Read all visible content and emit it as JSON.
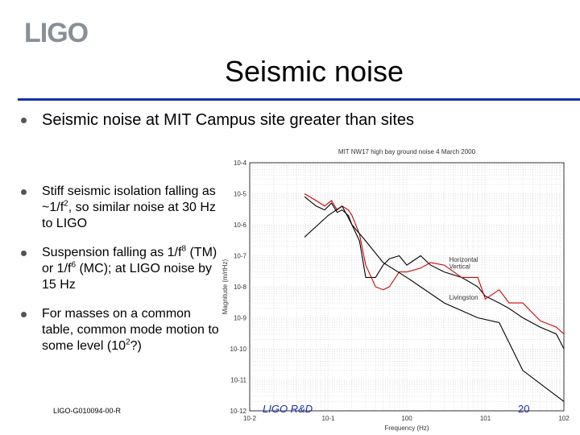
{
  "logo": "LIGO",
  "slide_title": "Seismic noise",
  "bullet_main": "Seismic noise at MIT Campus site greater than sites",
  "bullets": [
    {
      "parts": [
        "Stiff seismic isolation falling as ~1/f",
        "2",
        ", so similar noise at 30 Hz to LIGO"
      ]
    },
    {
      "parts": [
        "Suspension falling as 1/f",
        "8",
        " (TM) or 1/f",
        "6",
        " (MC); at LIGO noise by 15 Hz"
      ]
    },
    {
      "parts": [
        "For masses on a common table, common mode motion to some level (10",
        "2",
        "?)"
      ]
    }
  ],
  "footer": {
    "doc_id": "LIGO-G010094-00-R",
    "center": "LIGO R&D",
    "page": "20"
  },
  "chart_data": {
    "type": "line",
    "title": "MIT NW17 high bay ground noise 4 March 2000",
    "xlabel": "Frequency (Hz)",
    "ylabel": "Magnitude (m/rtHz)",
    "xscale": "log",
    "yscale": "log",
    "xlim": [
      0.01,
      100
    ],
    "ylim": [
      1e-12,
      0.0001
    ],
    "xticks": [
      "10-2",
      "10-1",
      "100",
      "101",
      "102"
    ],
    "yticks": [
      "10-4",
      "10-5",
      "10-6",
      "10-7",
      "10-8",
      "10-9",
      "10-10",
      "10-11",
      "10-12"
    ],
    "grid": true,
    "series": [
      {
        "name": "Vertical",
        "color": "#000000",
        "x": [
          0.05,
          0.07,
          0.09,
          0.11,
          0.13,
          0.15,
          0.18,
          0.2,
          0.25,
          0.3,
          0.4,
          0.5,
          0.6,
          0.8,
          1.0,
          1.5,
          2.0,
          3.0,
          5.0,
          8.0,
          10,
          15,
          20,
          30,
          50,
          80,
          100
        ],
        "y": [
          8e-06,
          4e-06,
          3e-06,
          5e-06,
          2.5e-06,
          3e-06,
          2e-06,
          1e-06,
          3e-07,
          2e-08,
          2e-08,
          5e-08,
          8e-08,
          1e-07,
          5e-08,
          1e-07,
          5e-08,
          3e-08,
          2e-08,
          1e-08,
          5e-09,
          3e-09,
          2e-09,
          1e-09,
          5e-10,
          3e-10,
          1e-10
        ]
      },
      {
        "name": "Horizontal",
        "color": "#cc0000",
        "x": [
          0.05,
          0.07,
          0.09,
          0.11,
          0.13,
          0.15,
          0.18,
          0.2,
          0.25,
          0.3,
          0.4,
          0.5,
          0.6,
          0.8,
          1.0,
          1.5,
          2.0,
          3.0,
          5.0,
          8.0,
          10,
          15,
          20,
          30,
          50,
          80,
          100
        ],
        "y": [
          1e-05,
          6e-06,
          4e-06,
          6e-06,
          3e-06,
          4e-06,
          3e-06,
          2e-06,
          5e-07,
          5e-08,
          1e-08,
          8e-09,
          1e-08,
          3e-08,
          3e-08,
          4e-08,
          6e-08,
          5e-08,
          2e-08,
          2e-08,
          4e-09,
          8e-09,
          3e-09,
          3e-09,
          8e-10,
          5e-10,
          3e-10
        ]
      },
      {
        "name": "Livingston",
        "color": "#000000",
        "x": [
          0.05,
          0.1,
          0.15,
          0.2,
          0.3,
          0.5,
          1.0,
          3.0,
          8.0,
          15,
          30,
          100
        ],
        "y": [
          4e-07,
          2e-06,
          4e-06,
          1e-06,
          3e-07,
          6e-08,
          2e-08,
          3e-09,
          1e-09,
          7e-10,
          2e-11,
          2e-12
        ]
      }
    ]
  }
}
